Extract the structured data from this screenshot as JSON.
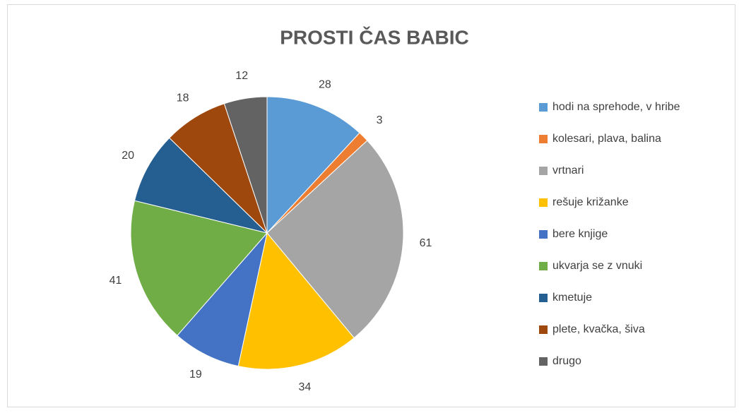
{
  "chart_data": {
    "type": "pie",
    "title": "PROSTI ČAS BABIC",
    "categories": [
      "hodi na sprehode, v hribe",
      "kolesari, plava, balina",
      "vrtnari",
      "rešuje križanke",
      "bere knjige",
      "ukvarja se z vnuki",
      "kmetuje",
      "plete, kvačka, šiva",
      "drugo"
    ],
    "values": [
      28,
      3,
      61,
      34,
      19,
      41,
      20,
      18,
      12
    ],
    "colors": [
      "#5b9bd5",
      "#ed7d31",
      "#a5a5a5",
      "#ffc000",
      "#4472c4",
      "#70ad47",
      "#255e91",
      "#9e480e",
      "#636363"
    ],
    "legend": "right"
  }
}
